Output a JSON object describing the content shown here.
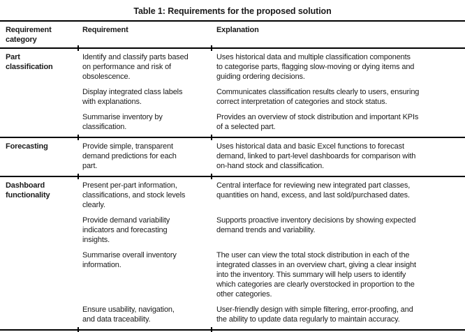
{
  "title": "Table 1: Requirements for the proposed solution",
  "columns": [
    "Requirement\ncategory",
    "Requirement",
    "Explanation"
  ],
  "sections": [
    {
      "category": "Part\nclassification",
      "rows": [
        {
          "requirement": "Identify and classify parts based\non performance and risk of\nobsolescence.",
          "explanation": "Uses historical data and multiple classification components\nto categorise parts, flagging slow-moving or dying items and\nguiding ordering decisions."
        },
        {
          "requirement": "Display integrated class labels\nwith explanations.",
          "explanation": "Communicates classification results clearly to users, ensuring\ncorrect interpretation of categories and stock status."
        },
        {
          "requirement": "Summarise inventory by\nclassification.",
          "explanation": "Provides an overview of stock distribution and important KPIs\nof a selected part."
        }
      ]
    },
    {
      "category": "Forecasting",
      "rows": [
        {
          "requirement": "Provide simple, transparent\ndemand predictions for each\npart.",
          "explanation": "Uses historical data and basic Excel functions to forecast\ndemand, linked to part-level dashboards for comparison with\non-hand stock and classification."
        }
      ]
    },
    {
      "category": "Dashboard\nfunctionality",
      "rows": [
        {
          "requirement": "Present per-part information,\nclassifications, and stock levels\nclearly.",
          "explanation": "Central interface for reviewing new integrated part classes,\nquantities on hand, excess, and last sold/purchased dates."
        },
        {
          "requirement": "Provide demand variability\nindicators and forecasting\ninsights.",
          "explanation": "Supports proactive inventory decisions by showing expected\ndemand trends and variability."
        },
        {
          "requirement": "Summarise overall inventory\ninformation.",
          "explanation": "The user can view the total stock distribution in each of the\nintegrated classes in an overview chart, giving a clear insight\ninto the inventory. This summary will help users to identify\nwhich categories are clearly overstocked in proportion to the\nother categories."
        },
        {
          "requirement": "Ensure usability, navigation,\nand data traceability.",
          "explanation": "User-friendly design with simple filtering, error-proofing, and\nthe ability to update data regularly to maintain accuracy."
        }
      ]
    }
  ],
  "colors": {
    "text": "#1a1a1a",
    "rule": "#000000",
    "background": "#ffffff"
  }
}
